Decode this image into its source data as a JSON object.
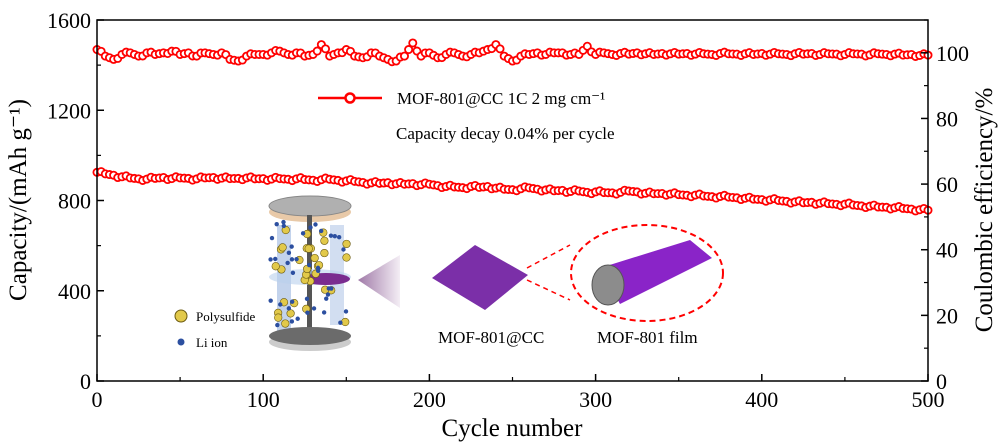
{
  "chart_data": {
    "type": "scatter",
    "title": "",
    "xlabel": "Cycle number",
    "ylabel": "Capacity/(mAh g⁻¹)",
    "ylabel_right": "Coulombic efficiency/%",
    "xlim": [
      0,
      500
    ],
    "ylim": [
      0,
      1600
    ],
    "ylim_right": [
      0,
      110
    ],
    "x_ticks": [
      0,
      100,
      200,
      300,
      400,
      500
    ],
    "y_ticks": [
      0,
      400,
      800,
      1200,
      1600
    ],
    "y_ticks_right": [
      0,
      20,
      40,
      60,
      80,
      100
    ],
    "grid": false,
    "legend": {
      "placement": "top-center",
      "entries": [
        "MOF-801@CC   1C  2 mg cm⁻¹"
      ]
    },
    "annotations": [
      "Capacity decay 0.04% per cycle"
    ],
    "color": "#ff0000",
    "x_step": 5,
    "series": [
      {
        "name": "Capacity",
        "axis": "left",
        "values": [
          925,
          918,
          912,
          905,
          900,
          896,
          895,
          898,
          902,
          897,
          900,
          898,
          896,
          900,
          902,
          899,
          897,
          898,
          900,
          896,
          897,
          895,
          897,
          894,
          896,
          893,
          890,
          892,
          894,
          889,
          887,
          885,
          880,
          878,
          876,
          879,
          874,
          872,
          875,
          870,
          872,
          866,
          862,
          860,
          857,
          862,
          858,
          862,
          855,
          850,
          848,
          852,
          856,
          850,
          847,
          843,
          845,
          840,
          842,
          836,
          838,
          835,
          834,
          836,
          842,
          838,
          832,
          830,
          831,
          829,
          826,
          823,
          824,
          820,
          817,
          818,
          815,
          812,
          810,
          806,
          804,
          803,
          800,
          796,
          794,
          790,
          792,
          788,
          786,
          783,
          784,
          780,
          776,
          775,
          771,
          770,
          768,
          765,
          762,
          759,
          757
        ]
      },
      {
        "name": "Coulombic efficiency",
        "axis": "right",
        "values": [
          101,
          99,
          98,
          99.5,
          100,
          99,
          100,
          99.5,
          100,
          100.5,
          99.5,
          100,
          99,
          100,
          99.5,
          100,
          98,
          97.5,
          99,
          99.5,
          99.5,
          100,
          100.5,
          99.5,
          100,
          99,
          99.5,
          102.5,
          99,
          100,
          101,
          99,
          98.5,
          100,
          99,
          98,
          97.5,
          99,
          103,
          99,
          100,
          98.5,
          99.5,
          100,
          99,
          99.5,
          100,
          101,
          102.5,
          99,
          97.5,
          99,
          99.5,
          100,
          99.5,
          100,
          100,
          99.5,
          99.5,
          102,
          99.5,
          100,
          99.5,
          99.8,
          99.6,
          100,
          99.7,
          99.5,
          99.8,
          99.7,
          99.6,
          99.8,
          99.6,
          99.7,
          99.5,
          99.8,
          99.7,
          99.6,
          99.7,
          99.5,
          99.8,
          99.6,
          99.7,
          99.5,
          99.7,
          99.6,
          99.8,
          99.5,
          99.7,
          99.6,
          99.5,
          99.7,
          99.6,
          99.4,
          99.7,
          99.5,
          99.6,
          99.3,
          99.5,
          99.2,
          99.3
        ]
      }
    ]
  },
  "inset": {
    "legend_polysulfide": "Polysulfide",
    "legend_li_ion": "Li ion",
    "label_mof_cc": "MOF-801@CC",
    "label_mof_film": "MOF-801 film"
  }
}
